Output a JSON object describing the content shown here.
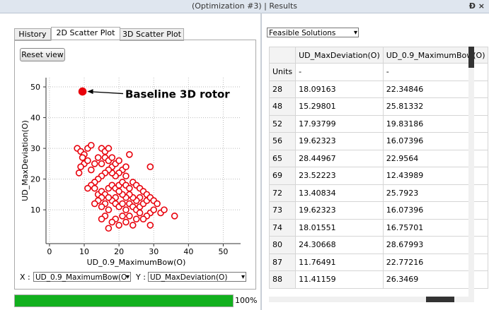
{
  "window": {
    "title": "(Optimization #3) | Results",
    "icons": "Ɖ ×"
  },
  "tabs": [
    "History",
    "2D Scatter Plot",
    "3D Scatter Plot"
  ],
  "reset_button": "Reset view",
  "chart_data": {
    "type": "scatter",
    "xlabel": "UD_0.9_MaximumBow(O)",
    "ylabel": "UD_MaxDeviation(O)",
    "xlim": [
      -1,
      55
    ],
    "ylim": [
      -1,
      53
    ],
    "xticks": [
      0,
      10,
      20,
      30,
      40,
      50
    ],
    "yticks": [
      10,
      20,
      30,
      40,
      50
    ],
    "grid": true,
    "series": [
      {
        "color": "#e8000b",
        "filled": false,
        "x": [
          8,
          9,
          10,
          9.5,
          11,
          12,
          10,
          11,
          9,
          8.5,
          12,
          13,
          14,
          15,
          16,
          17,
          16,
          15,
          17,
          18,
          18,
          19,
          20,
          21,
          22,
          23,
          22,
          20,
          19,
          18,
          17,
          16,
          15,
          14,
          13,
          12,
          11,
          13,
          14,
          15,
          16,
          17,
          18,
          19,
          20,
          21,
          22,
          23,
          24,
          25,
          26,
          27,
          28,
          26,
          25,
          24,
          23,
          22,
          21,
          20,
          19,
          18,
          17,
          16,
          15,
          14,
          13,
          15,
          17,
          19,
          20,
          21,
          22,
          23,
          24,
          25,
          26,
          27,
          28,
          29,
          30,
          31,
          32,
          33,
          36,
          29,
          28,
          27,
          25,
          23,
          21,
          19,
          18,
          17,
          16,
          15,
          29,
          30,
          29,
          20,
          22,
          24,
          26
        ],
        "y": [
          30,
          29,
          28,
          27,
          30,
          31,
          25,
          26,
          24,
          22,
          23,
          25,
          27,
          30,
          29,
          30,
          27,
          25,
          26,
          27,
          24,
          25,
          26,
          23,
          24,
          28,
          21,
          22,
          21,
          22,
          23,
          22,
          21,
          20,
          19,
          18,
          17,
          17,
          15,
          16,
          15,
          17,
          18,
          17,
          18,
          19,
          18,
          17,
          19,
          18,
          17,
          16,
          15,
          14,
          13,
          14,
          15,
          14,
          15,
          16,
          14,
          13,
          14,
          12,
          14,
          13,
          12,
          11,
          10,
          12,
          11,
          12,
          10,
          12,
          11,
          10,
          11,
          12,
          13,
          14,
          13,
          12,
          9,
          10,
          8,
          9,
          8,
          7,
          7,
          8,
          8,
          7,
          6,
          4,
          8,
          7,
          24,
          10,
          5,
          5,
          6,
          5,
          9
        ]
      },
      {
        "color": "#e8000b",
        "filled": true,
        "x": [
          9.5
        ],
        "y": [
          48.5
        ]
      }
    ],
    "annotation": "Baseline 3D rotor"
  },
  "axis_select": {
    "x_label": "X :",
    "x_value": "UD_0.9_MaximumBow(O",
    "y_label": "Y :",
    "y_value": "UD_MaxDeviation(O)"
  },
  "progress": {
    "value": 100,
    "label": "100%"
  },
  "filter": "Feasible Solutions",
  "table": {
    "columns": [
      "UD_MaxDeviation(O)",
      "UD_0.9_MaximumBow(O)"
    ],
    "rows": [
      [
        "Units",
        "-",
        "-"
      ],
      [
        "28",
        "18.09163",
        "22.34846"
      ],
      [
        "48",
        "15.29801",
        "25.81332"
      ],
      [
        "52",
        "17.93799",
        "19.83186"
      ],
      [
        "56",
        "19.62323",
        "16.07396"
      ],
      [
        "65",
        "28.44967",
        "22.9564"
      ],
      [
        "69",
        "23.52223",
        "12.43989"
      ],
      [
        "72",
        "13.40834",
        "25.7923"
      ],
      [
        "73",
        "19.62323",
        "16.07396"
      ],
      [
        "74",
        "18.01551",
        "16.75701"
      ],
      [
        "80",
        "24.30668",
        "28.67993"
      ],
      [
        "87",
        "11.76491",
        "22.77216"
      ],
      [
        "88",
        "11.41159",
        "26.3469"
      ]
    ]
  }
}
